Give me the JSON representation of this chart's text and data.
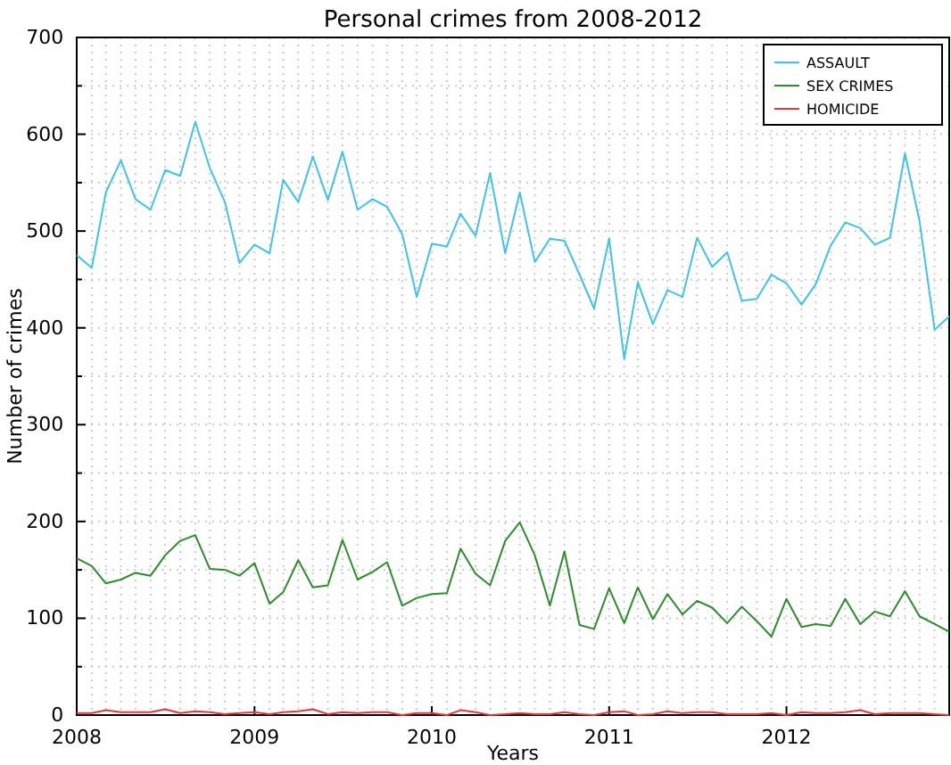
{
  "chart_data": {
    "type": "line",
    "title": "Personal crimes from 2008-2012",
    "xlabel": "Years",
    "ylabel": "Number of crimes",
    "x": [
      "2008-01",
      "2008-02",
      "2008-03",
      "2008-04",
      "2008-05",
      "2008-06",
      "2008-07",
      "2008-08",
      "2008-09",
      "2008-10",
      "2008-11",
      "2008-12",
      "2009-01",
      "2009-02",
      "2009-03",
      "2009-04",
      "2009-05",
      "2009-06",
      "2009-07",
      "2009-08",
      "2009-09",
      "2009-10",
      "2009-11",
      "2009-12",
      "2010-01",
      "2010-02",
      "2010-03",
      "2010-04",
      "2010-05",
      "2010-06",
      "2010-07",
      "2010-08",
      "2010-09",
      "2010-10",
      "2010-11",
      "2010-12",
      "2011-01",
      "2011-02",
      "2011-03",
      "2011-04",
      "2011-05",
      "2011-06",
      "2011-07",
      "2011-08",
      "2011-09",
      "2011-10",
      "2011-11",
      "2011-12",
      "2012-01",
      "2012-02",
      "2012-03",
      "2012-04",
      "2012-05",
      "2012-06",
      "2012-07",
      "2012-08",
      "2012-09",
      "2012-10",
      "2012-11",
      "2012-12"
    ],
    "series": [
      {
        "name": "ASSAULT",
        "color": "#3fc4e6",
        "values": [
          475,
          462,
          540,
          573,
          533,
          522,
          563,
          557,
          613,
          565,
          530,
          467,
          486,
          477,
          553,
          530,
          577,
          532,
          582,
          522,
          533,
          525,
          497,
          432,
          487,
          484,
          518,
          495,
          560,
          477,
          540,
          468,
          492,
          490,
          455,
          420,
          492,
          368,
          447,
          404,
          439,
          432,
          493,
          463,
          478,
          428,
          430,
          455,
          446,
          424,
          445,
          485,
          509,
          503,
          486,
          493,
          580,
          510,
          398,
          412
        ]
      },
      {
        "name": "SEX CRIMES",
        "color": "#2e8b2e",
        "values": [
          162,
          154,
          136,
          140,
          147,
          144,
          165,
          180,
          186,
          151,
          150,
          144,
          157,
          115,
          127,
          160,
          132,
          134,
          181,
          140,
          148,
          158,
          113,
          121,
          125,
          126,
          172,
          146,
          134,
          180,
          199,
          165,
          113,
          169,
          93,
          89,
          131,
          95,
          132,
          99,
          125,
          104,
          118,
          111,
          95,
          112,
          97,
          81,
          120,
          91,
          94,
          92,
          120,
          94,
          107,
          102,
          128,
          102,
          94,
          86
        ]
      },
      {
        "name": "HOMICIDE",
        "color": "#e03a3a",
        "values": [
          2,
          2,
          5,
          3,
          3,
          3,
          6,
          2,
          4,
          3,
          1,
          2,
          3,
          1,
          3,
          4,
          6,
          1,
          3,
          2,
          3,
          3,
          0,
          2,
          2,
          0,
          5,
          3,
          0,
          1,
          2,
          1,
          1,
          3,
          1,
          0,
          3,
          4,
          0,
          1,
          4,
          2,
          3,
          3,
          1,
          1,
          1,
          2,
          0,
          3,
          2,
          2,
          3,
          5,
          1,
          2,
          2,
          2,
          1,
          0
        ]
      }
    ],
    "xlim": [
      "2008-01",
      "2012-12"
    ],
    "xticks": [
      {
        "value": "2008-01",
        "label": "2008"
      },
      {
        "value": "2009-01",
        "label": "2009"
      },
      {
        "value": "2010-01",
        "label": "2010"
      },
      {
        "value": "2011-01",
        "label": "2011"
      },
      {
        "value": "2012-01",
        "label": "2012"
      }
    ],
    "ylim": [
      0,
      700
    ],
    "yticks": [
      0,
      {
        "value": 50,
        "label": null
      },
      100,
      {
        "value": 150,
        "label": null
      },
      200,
      {
        "value": 250,
        "label": null
      },
      300,
      {
        "value": 350,
        "label": null
      },
      400,
      {
        "value": 450,
        "label": null
      },
      500,
      {
        "value": 550,
        "label": null
      },
      600,
      {
        "value": 650,
        "label": null
      },
      700
    ],
    "grid": true,
    "legend": "top right",
    "marker": "none",
    "line_style": "solid"
  }
}
